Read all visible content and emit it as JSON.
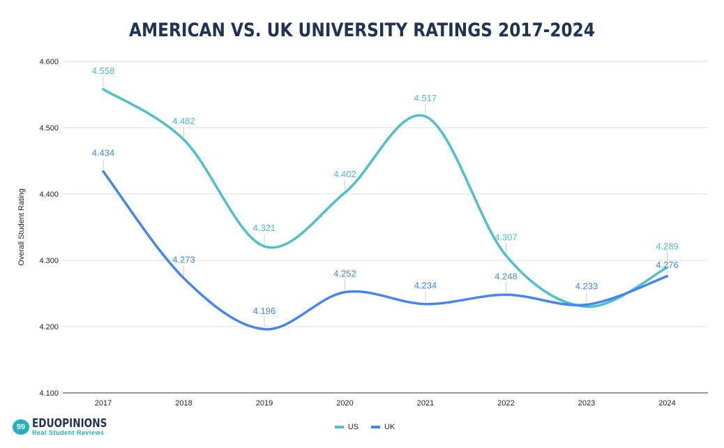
{
  "chart_data": {
    "type": "line",
    "title": "AMERICAN VS. UK UNIVERSITY RATINGS 2017-2024",
    "xlabel": "",
    "ylabel": "Overall Student Rating",
    "categories": [
      "2017",
      "2018",
      "2019",
      "2020",
      "2021",
      "2022",
      "2023",
      "2024"
    ],
    "ylim": [
      4.1,
      4.6
    ],
    "yticks": [
      "4.100",
      "4.200",
      "4.300",
      "4.400",
      "4.500",
      "4.600"
    ],
    "grid": true,
    "legend": "bottom",
    "smooth": true,
    "series": [
      {
        "name": "US",
        "color": "#4cc1c8",
        "values": [
          4.558,
          4.482,
          4.321,
          4.402,
          4.517,
          4.307,
          4.23,
          4.289
        ],
        "labels": [
          "4.558",
          "4.482",
          "4.321",
          "4.402",
          "4.517",
          "4.307",
          "",
          "4.289"
        ]
      },
      {
        "name": "UK",
        "color": "#4285f4",
        "values": [
          4.434,
          4.273,
          4.196,
          4.252,
          4.234,
          4.248,
          4.233,
          4.276
        ],
        "labels": [
          "4.434",
          "4.273",
          "4.196",
          "4.252",
          "4.234",
          "4.248",
          "4.233",
          "4.276"
        ]
      }
    ]
  },
  "logo": {
    "brand": "EDUOPINIONS",
    "tagline": "Real Student Reviews"
  }
}
